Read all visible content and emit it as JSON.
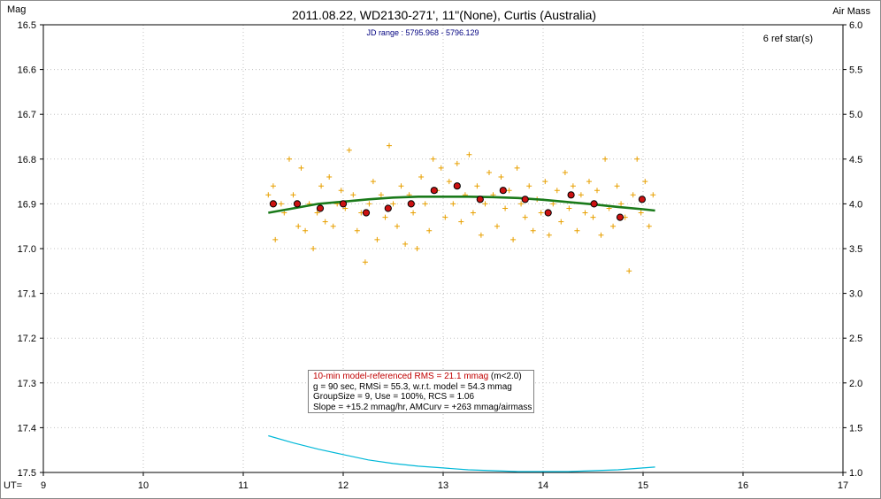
{
  "chart_data": {
    "type": "scatter",
    "title": "2011.08.22, WD2130-271', 11\"(None), Curtis (Australia)",
    "subtitle": "JD range : 5795.968 - 5796.129",
    "ref_stars": "6 ref star(s)",
    "ylabel": "Mag",
    "y2label": "Air Mass",
    "xlabel": "UT=",
    "xlim": [
      9,
      17
    ],
    "ylim": [
      16.5,
      17.5
    ],
    "y_inverted": true,
    "y2lim": [
      1.0,
      6.0
    ],
    "x_ticks": [
      "9",
      "10",
      "11",
      "12",
      "13",
      "14",
      "15",
      "16",
      "17"
    ],
    "y_ticks": [
      "16.5",
      "16.6",
      "16.7",
      "16.8",
      "16.9",
      "17.0",
      "17.1",
      "17.2",
      "17.3",
      "17.4",
      "17.5"
    ],
    "y2_ticks": [
      "6.0",
      "5.5",
      "5.0",
      "4.5",
      "4.0",
      "3.5",
      "3.0",
      "2.5",
      "2.0",
      "1.5",
      "1.0"
    ],
    "grid": true,
    "colors": {
      "points": "#e8a000",
      "group_means": "#cc1111",
      "model": "#1a7a1a",
      "airmass": "#00b8d8",
      "subtitle": "#000080",
      "rms_text": "#c00000"
    },
    "series": [
      {
        "marker": "plus",
        "x": [
          11.25,
          11.3,
          11.32,
          11.38,
          11.41,
          11.46,
          11.5,
          11.55,
          11.58,
          11.62,
          11.66,
          11.7,
          11.74,
          11.78,
          11.82,
          11.86,
          11.9,
          11.94,
          11.98,
          12.02,
          12.06,
          12.1,
          12.14,
          12.18,
          12.22,
          12.26,
          12.3,
          12.34,
          12.38,
          12.42,
          12.46,
          12.5,
          12.54,
          12.58,
          12.62,
          12.66,
          12.7,
          12.74,
          12.78,
          12.82,
          12.86,
          12.9,
          12.94,
          12.98,
          13.02,
          13.06,
          13.1,
          13.14,
          13.18,
          13.22,
          13.26,
          13.3,
          13.34,
          13.38,
          13.42,
          13.46,
          13.5,
          13.54,
          13.58,
          13.62,
          13.66,
          13.7,
          13.74,
          13.78,
          13.82,
          13.86,
          13.9,
          13.94,
          13.98,
          14.02,
          14.06,
          14.1,
          14.14,
          14.18,
          14.22,
          14.26,
          14.3,
          14.34,
          14.38,
          14.42,
          14.46,
          14.5,
          14.54,
          14.58,
          14.62,
          14.66,
          14.7,
          14.74,
          14.78,
          14.82,
          14.86,
          14.9,
          14.94,
          14.98,
          15.02,
          15.06,
          15.1
        ],
        "y": [
          16.88,
          16.86,
          16.98,
          16.9,
          16.92,
          16.8,
          16.88,
          16.95,
          16.82,
          16.96,
          16.9,
          17.0,
          16.92,
          16.86,
          16.94,
          16.84,
          16.95,
          16.9,
          16.87,
          16.91,
          16.78,
          16.88,
          16.96,
          16.92,
          17.03,
          16.9,
          16.85,
          16.98,
          16.88,
          16.93,
          16.77,
          16.9,
          16.95,
          16.86,
          16.99,
          16.88,
          16.92,
          17.0,
          16.84,
          16.9,
          16.96,
          16.8,
          16.87,
          16.82,
          16.93,
          16.85,
          16.9,
          16.81,
          16.94,
          16.88,
          16.79,
          16.92,
          16.86,
          16.97,
          16.9,
          16.83,
          16.88,
          16.95,
          16.84,
          16.91,
          16.87,
          16.98,
          16.82,
          16.9,
          16.93,
          16.86,
          16.96,
          16.89,
          16.92,
          16.85,
          16.97,
          16.9,
          16.87,
          16.94,
          16.83,
          16.91,
          16.86,
          16.96,
          16.88,
          16.92,
          16.85,
          16.93,
          16.87,
          16.97,
          16.8,
          16.91,
          16.95,
          16.86,
          16.9,
          16.93,
          17.05,
          16.88,
          16.8,
          16.92,
          16.85,
          16.95,
          16.88
        ]
      },
      {
        "marker": "circle",
        "x": [
          11.3,
          11.54,
          11.77,
          12.0,
          12.23,
          12.45,
          12.68,
          12.91,
          13.14,
          13.37,
          13.6,
          13.82,
          14.05,
          14.28,
          14.51,
          14.77,
          14.99
        ],
        "y": [
          16.9,
          16.9,
          16.91,
          16.9,
          16.92,
          16.91,
          16.9,
          16.87,
          16.86,
          16.89,
          16.87,
          16.89,
          16.92,
          16.88,
          16.9,
          16.93,
          16.89
        ]
      },
      {
        "marker": "line",
        "x": [
          11.25,
          11.5,
          11.75,
          12.0,
          12.25,
          12.5,
          12.75,
          13.0,
          13.25,
          13.5,
          13.75,
          14.0,
          14.25,
          14.5,
          14.75,
          15.0,
          15.12
        ],
        "y": [
          16.92,
          16.91,
          16.9,
          16.895,
          16.89,
          16.886,
          16.884,
          16.884,
          16.884,
          16.885,
          16.887,
          16.891,
          16.896,
          16.901,
          16.907,
          16.912,
          16.915
        ]
      },
      {
        "marker": "line",
        "axis": "airmass",
        "x": [
          11.25,
          11.5,
          11.75,
          12.0,
          12.25,
          12.5,
          12.75,
          13.0,
          13.25,
          13.5,
          13.75,
          14.0,
          14.25,
          14.5,
          14.75,
          15.0,
          15.12
        ],
        "y": [
          1.41,
          1.33,
          1.26,
          1.2,
          1.14,
          1.1,
          1.07,
          1.05,
          1.03,
          1.02,
          1.01,
          1.01,
          1.01,
          1.02,
          1.03,
          1.05,
          1.06
        ]
      }
    ]
  },
  "stats": {
    "line1": "10-min model-referenced RMS = 21.1 mmag",
    "line1_suffix": "(m<2.0)",
    "line2": "g = 90 sec, RMSi = 55.3, w.r.t. model = 54.3 mmag",
    "line3": "GroupSize = 9, Use = 100%, RCS = 1.06",
    "line4": "Slope = +15.2 mmag/hr, AMCurv = +263 mmag/airmass"
  }
}
